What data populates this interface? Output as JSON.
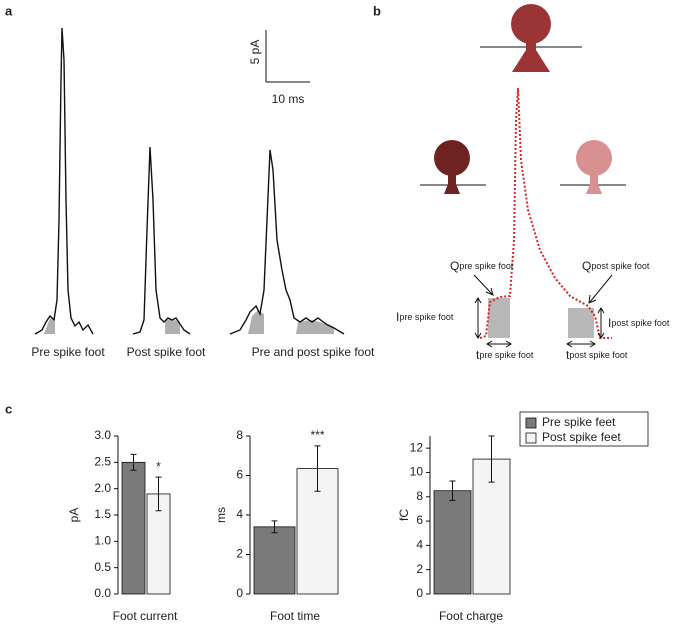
{
  "panels": {
    "a": "a",
    "b": "b",
    "c": "c"
  },
  "traces": {
    "labels": [
      "Pre spike foot",
      "Post spike foot",
      "Pre and post spike foot"
    ],
    "scale_y": "5 pA",
    "scale_x": "10 ms"
  },
  "diagram": {
    "q_pre": {
      "main": "Q",
      "sub": "pre spike foot"
    },
    "q_post": {
      "main": "Q",
      "sub": "post spike foot"
    },
    "i_pre": {
      "main": "I",
      "sub": "pre spike foot"
    },
    "i_post": {
      "main": "I",
      "sub": "post spike foot"
    },
    "t_pre": {
      "main": "t",
      "sub": "pre spike foot"
    },
    "t_post": {
      "main": "t",
      "sub": "post spike foot"
    }
  },
  "legend": [
    {
      "name": "Pre spike feet",
      "color": "#7a7a7a"
    },
    {
      "name": "Post spike feet",
      "color": "#f4f4f4"
    }
  ],
  "chart_data": [
    {
      "type": "bar",
      "xlabel": "Foot current",
      "ylabel": "pA",
      "values": [
        2.5,
        1.9
      ],
      "errors": [
        0.15,
        0.32
      ],
      "annotation": "*",
      "ylim": [
        0,
        3.0
      ],
      "yticks": [
        {
          "value": 0,
          "label": "0.0"
        },
        {
          "value": 0.5,
          "label": "0.5"
        },
        {
          "value": 1,
          "label": "1.0"
        },
        {
          "value": 1.5,
          "label": "1.5"
        },
        {
          "value": 2,
          "label": "2.0"
        },
        {
          "value": 2.5,
          "label": "2.5"
        },
        {
          "value": 3,
          "label": "3.0"
        }
      ]
    },
    {
      "type": "bar",
      "xlabel": "Foot time",
      "ylabel": "ms",
      "values": [
        3.4,
        6.35
      ],
      "errors": [
        0.3,
        1.15
      ],
      "annotation": "***",
      "ylim": [
        0,
        8
      ],
      "yticks": [
        0,
        2,
        4,
        6,
        8
      ]
    },
    {
      "type": "bar",
      "xlabel": "Foot charge",
      "ylabel": "fC",
      "values": [
        8.5,
        11.1
      ],
      "errors": [
        0.8,
        1.9
      ],
      "ylim": [
        0,
        13
      ],
      "yticks": [
        0,
        2,
        4,
        6,
        8,
        10,
        12
      ]
    }
  ]
}
